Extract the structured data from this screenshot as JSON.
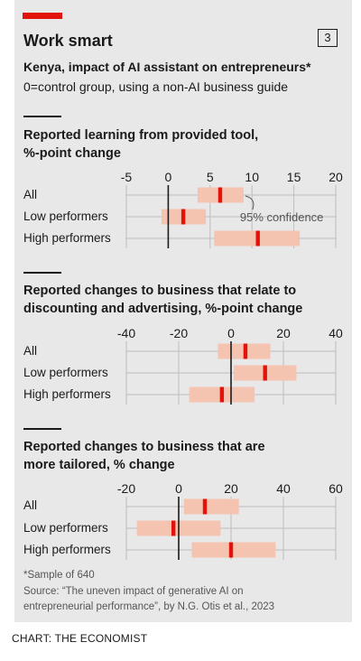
{
  "header": {
    "title": "Work smart",
    "badge": "3",
    "subtitle_line1": "Kenya, impact of AI assistant on entrepreneurs*",
    "subtitle_line2": "0=control group, using a non-AI business guide"
  },
  "chart_data": [
    {
      "type": "interval",
      "title_line1": "Reported learning from provided tool,",
      "title_line2": "%-point change",
      "ticks": [
        -5,
        0,
        5,
        10,
        15,
        20
      ],
      "xlim": [
        -5,
        20
      ],
      "annotation": "95% confidence",
      "rows": [
        {
          "label": "All",
          "estimate": 6.2,
          "low": 3.5,
          "high": 9.0
        },
        {
          "label": "Low performers",
          "estimate": 1.8,
          "low": -0.8,
          "high": 4.5
        },
        {
          "label": "High performers",
          "estimate": 10.7,
          "low": 5.5,
          "high": 15.7
        }
      ]
    },
    {
      "type": "interval",
      "title_line1": "Reported changes to business that relate to",
      "title_line2": "discounting and advertising, %-point change",
      "ticks": [
        -40,
        -20,
        0,
        20,
        40
      ],
      "xlim": [
        -40,
        40
      ],
      "rows": [
        {
          "label": "All",
          "estimate": 5.5,
          "low": -5,
          "high": 15
        },
        {
          "label": "Low performers",
          "estimate": 13,
          "low": 1,
          "high": 25
        },
        {
          "label": "High performers",
          "estimate": -3.5,
          "low": -16,
          "high": 9
        }
      ]
    },
    {
      "type": "interval",
      "title_line1": "Reported changes to business that are",
      "title_line2": "more tailored, % change",
      "ticks": [
        -20,
        0,
        20,
        40,
        60
      ],
      "xlim": [
        -20,
        60
      ],
      "rows": [
        {
          "label": "All",
          "estimate": 10,
          "low": 2,
          "high": 23
        },
        {
          "label": "Low performers",
          "estimate": -2,
          "low": -16,
          "high": 16
        },
        {
          "label": "High performers",
          "estimate": 20,
          "low": 5,
          "high": 37
        }
      ]
    }
  ],
  "footer": {
    "note": "*Sample of 640",
    "source_line1": "Source: “The uneven impact of generative AI on",
    "source_line2": "entrepreneurial performance”, by N.G. Otis et al., 2023"
  },
  "credit": "CHART: THE ECONOMIST",
  "colors": {
    "estimate": "#e3120b",
    "interval": "#f4c4b0",
    "grid": "#bdbdbd",
    "zero": "#1a1a1a"
  }
}
